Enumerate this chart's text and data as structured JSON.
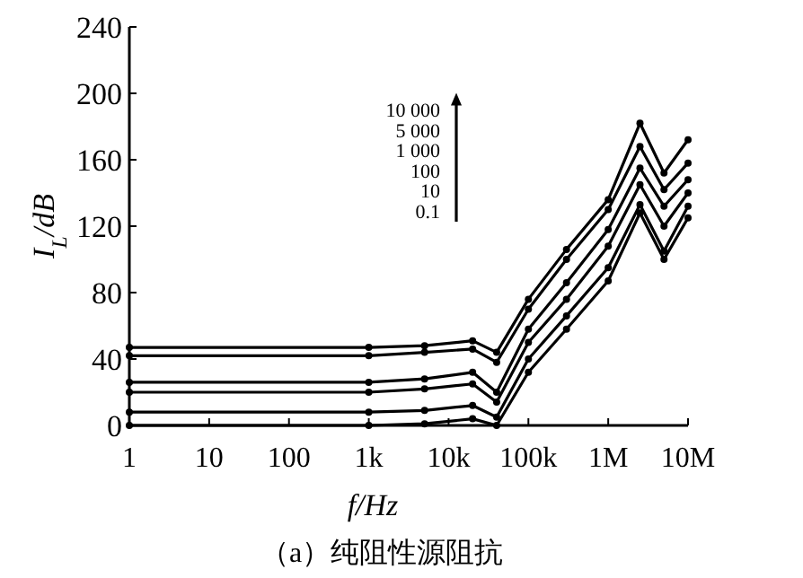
{
  "chart_data": {
    "type": "line",
    "ylabel": "I$_{L}$/dB",
    "xlabel": "f/Hz",
    "annotations": [
      "（a）纯阻性源阻抗",
      "10 000",
      "5 000",
      "1 000",
      "100",
      "10",
      "0.1"
    ],
    "log": "x",
    "xlim": [
      1,
      10000000
    ],
    "ylim": [
      0,
      240
    ],
    "xticks": [
      1,
      10,
      100,
      {
        "value": 1000,
        "label": "1k"
      },
      {
        "value": 10000,
        "label": "10k"
      },
      {
        "value": 100000,
        "label": "100k"
      },
      {
        "value": 1000000,
        "label": "1M"
      },
      {
        "value": 10000000,
        "label": "10M"
      }
    ],
    "yticks": [
      0,
      40,
      80,
      120,
      160,
      200,
      240
    ],
    "x": [
      1,
      1000,
      5000,
      20000,
      40000,
      100000,
      300000,
      1000000,
      2500000,
      5000000,
      10000000
    ],
    "marker": "circle",
    "line_style": "solid",
    "grid": false,
    "series": [
      {
        "color": "#000000",
        "values": [
          0,
          0,
          1,
          4,
          0,
          32,
          58,
          87,
          128,
          100,
          125
        ]
      },
      {
        "color": "#000000",
        "values": [
          8,
          8,
          9,
          12,
          5,
          40,
          66,
          95,
          133,
          105,
          132
        ]
      },
      {
        "color": "#000000",
        "values": [
          20,
          20,
          22,
          25,
          14,
          50,
          76,
          108,
          145,
          120,
          140
        ]
      },
      {
        "color": "#000000",
        "values": [
          26,
          26,
          28,
          32,
          20,
          58,
          86,
          118,
          155,
          132,
          148
        ]
      },
      {
        "color": "#000000",
        "values": [
          42,
          42,
          44,
          46,
          38,
          70,
          100,
          130,
          168,
          142,
          158
        ]
      },
      {
        "color": "#000000",
        "values": [
          47,
          47,
          48,
          51,
          44,
          76,
          106,
          136,
          182,
          152,
          172
        ]
      }
    ]
  }
}
